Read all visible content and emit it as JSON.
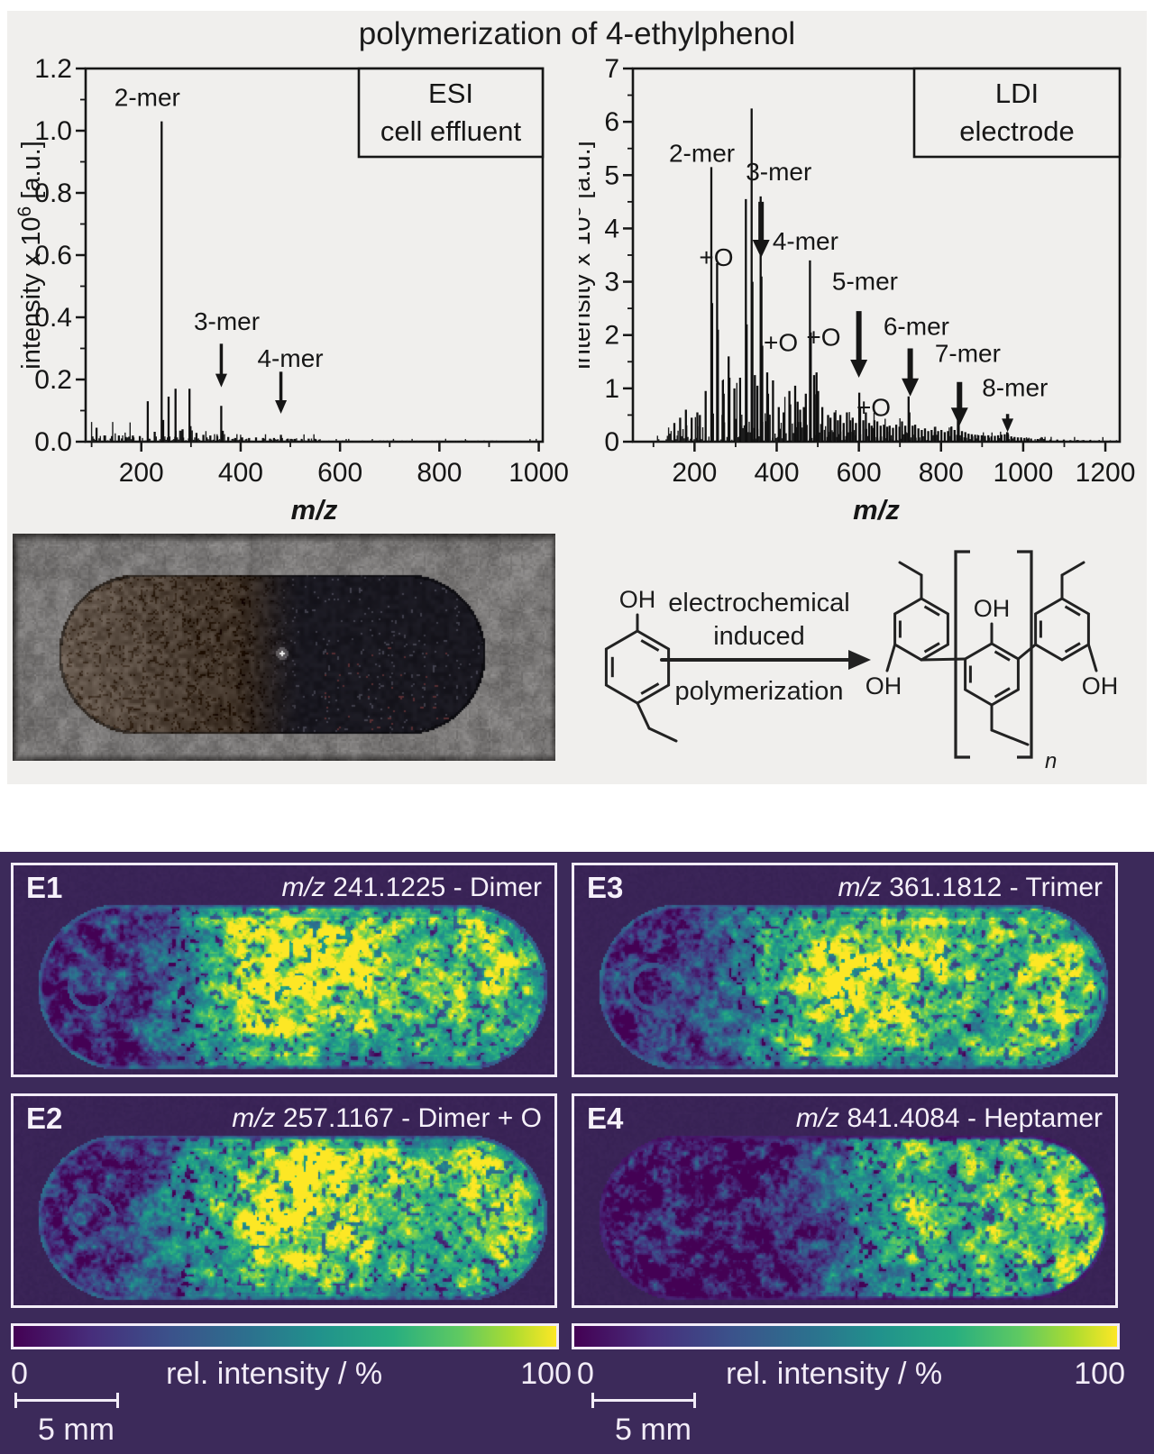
{
  "title": "polymerization of 4-ethylphenol",
  "scheme": {
    "reactant_oh": "OH",
    "arrow_line1": "electrochemical",
    "arrow_line2": "induced",
    "arrow_line3": "polymerization",
    "product_oh_left": "OH",
    "product_oh_center": "OH",
    "product_oh_right": "OH",
    "repeat_subscript": "n"
  },
  "imaging": {
    "panels": [
      {
        "id": "E1",
        "mz_label": "m/z",
        "caption": "241.1225 - Dimer",
        "pattern": "full"
      },
      {
        "id": "E2",
        "mz_label": "m/z",
        "caption": "257.1167 - Dimer + O",
        "pattern": "full"
      },
      {
        "id": "E3",
        "mz_label": "m/z",
        "caption": "361.1812 - Trimer",
        "pattern": "full"
      },
      {
        "id": "E4",
        "mz_label": "m/z",
        "caption": "841.4084 - Heptamer",
        "pattern": "right"
      }
    ],
    "colorbar": {
      "min_label": "0",
      "max_label": "100",
      "title": "rel. intensity / %"
    },
    "scalebar_label": "5 mm",
    "colors": {
      "background": "#3c2a5a",
      "panel_bg": "#3a2457",
      "frame": "#f2ecf7",
      "viridis_min": "#440154",
      "viridis_max": "#fde725"
    }
  },
  "chart_data": [
    {
      "type": "line",
      "subtype": "mass-spectrum",
      "title": "ESI cell effluent",
      "legend": [
        "ESI",
        "cell effluent"
      ],
      "legend_position": "top-right",
      "xlabel": "m/z",
      "ylabel_main": "intensity x 10",
      "ylabel_exp": "6",
      "ylabel_unit": " [a.u.]",
      "x_range": [
        88,
        1008
      ],
      "x_ticks": [
        200,
        400,
        600,
        800,
        1000
      ],
      "x_minor_step": 100,
      "y_range": [
        0,
        1.2
      ],
      "y_ticks": [
        0.0,
        0.2,
        0.4,
        0.6,
        0.8,
        1.0,
        1.2
      ],
      "y_tick_labels": [
        "0.0",
        "0.2",
        "0.4",
        "0.6",
        "0.8",
        "1.0",
        "1.2"
      ],
      "y_minor_step": 0.1,
      "grid": false,
      "peaks": [
        [
          110,
          0.045
        ],
        [
          127,
          0.02
        ],
        [
          141,
          0.018
        ],
        [
          155,
          0.02
        ],
        [
          169,
          0.015
        ],
        [
          183,
          0.02
        ],
        [
          197,
          0.018
        ],
        [
          213,
          0.13
        ],
        [
          227,
          0.032
        ],
        [
          241,
          1.03
        ],
        [
          244,
          0.07
        ],
        [
          255,
          0.145
        ],
        [
          269,
          0.17
        ],
        [
          283,
          0.04
        ],
        [
          297,
          0.17
        ],
        [
          299,
          0.05
        ],
        [
          311,
          0.028
        ],
        [
          325,
          0.022
        ],
        [
          339,
          0.02
        ],
        [
          353,
          0.018
        ],
        [
          361,
          0.115
        ],
        [
          364,
          0.035
        ],
        [
          375,
          0.015
        ],
        [
          389,
          0.012
        ],
        [
          403,
          0.014
        ],
        [
          417,
          0.012
        ],
        [
          431,
          0.014
        ],
        [
          445,
          0.012
        ],
        [
          459,
          0.01
        ],
        [
          467,
          0.012
        ],
        [
          481,
          0.022
        ],
        [
          483,
          0.012
        ],
        [
          495,
          0.01
        ],
        [
          509,
          0.009
        ],
        [
          523,
          0.008
        ],
        [
          537,
          0.01
        ],
        [
          551,
          0.008
        ]
      ],
      "annotations": [
        {
          "label": "2-mer",
          "label_x": 212,
          "label_y": 1.08
        },
        {
          "label": "3-mer",
          "label_x": 372,
          "label_y": 0.36,
          "arrow": {
            "x": 361,
            "y1": 0.315,
            "y2": 0.175
          },
          "thick": false
        },
        {
          "label": "4-mer",
          "label_x": 500,
          "label_y": 0.24,
          "arrow": {
            "x": 481,
            "y1": 0.225,
            "y2": 0.09
          },
          "thick": false
        }
      ]
    },
    {
      "type": "line",
      "subtype": "mass-spectrum",
      "title": "LDI electrode",
      "legend": [
        "LDI",
        "electrode"
      ],
      "legend_position": "top-right",
      "xlabel": "m/z",
      "ylabel_main": "intensity x 10",
      "ylabel_exp": "3",
      "ylabel_unit": " [a.u.]",
      "x_range": [
        50,
        1235
      ],
      "x_ticks": [
        200,
        400,
        600,
        800,
        1000,
        1200
      ],
      "x_minor_step": 100,
      "y_range": [
        0,
        7
      ],
      "y_ticks": [
        0,
        1,
        2,
        3,
        4,
        5,
        6,
        7
      ],
      "y_tick_labels": [
        "0",
        "1",
        "2",
        "3",
        "4",
        "5",
        "6",
        "7"
      ],
      "y_minor_step": 0.5,
      "grid": false,
      "peaks": [
        [
          151,
          0.35
        ],
        [
          165,
          0.45
        ],
        [
          179,
          0.6
        ],
        [
          193,
          0.45
        ],
        [
          207,
          0.55
        ],
        [
          213,
          0.5
        ],
        [
          227,
          0.95
        ],
        [
          241,
          5.15
        ],
        [
          243,
          2.6
        ],
        [
          255,
          3.35
        ],
        [
          257,
          2.1
        ],
        [
          269,
          1.15
        ],
        [
          271,
          0.9
        ],
        [
          283,
          1.6
        ],
        [
          285,
          1.2
        ],
        [
          297,
          1.0
        ],
        [
          311,
          1.2
        ],
        [
          325,
          4.55
        ],
        [
          327,
          2.2
        ],
        [
          339,
          6.25
        ],
        [
          341,
          3.0
        ],
        [
          347,
          1.25
        ],
        [
          353,
          1.05
        ],
        [
          361,
          4.6
        ],
        [
          363,
          3.1
        ],
        [
          365,
          1.8
        ],
        [
          377,
          1.3
        ],
        [
          379,
          0.9
        ],
        [
          391,
          1.15
        ],
        [
          405,
          0.65
        ],
        [
          417,
          0.55
        ],
        [
          431,
          0.95
        ],
        [
          433,
          0.7
        ],
        [
          445,
          1.05
        ],
        [
          451,
          0.75
        ],
        [
          457,
          0.6
        ],
        [
          466,
          0.65
        ],
        [
          471,
          0.9
        ],
        [
          481,
          3.4
        ],
        [
          483,
          2.05
        ],
        [
          491,
          1.25
        ],
        [
          497,
          1.3
        ],
        [
          501,
          0.95
        ],
        [
          511,
          0.65
        ],
        [
          525,
          0.5
        ],
        [
          531,
          0.45
        ],
        [
          541,
          0.55
        ],
        [
          549,
          0.4
        ],
        [
          555,
          0.5
        ],
        [
          563,
          0.35
        ],
        [
          571,
          0.55
        ],
        [
          579,
          0.4
        ],
        [
          585,
          0.45
        ],
        [
          593,
          0.35
        ],
        [
          601,
          0.92
        ],
        [
          603,
          0.65
        ],
        [
          611,
          0.4
        ],
        [
          617,
          0.55
        ],
        [
          625,
          0.35
        ],
        [
          631,
          0.3
        ],
        [
          638,
          0.4
        ],
        [
          645,
          0.38
        ],
        [
          653,
          0.3
        ],
        [
          661,
          0.32
        ],
        [
          669,
          0.28
        ],
        [
          675,
          0.3
        ],
        [
          683,
          0.26
        ],
        [
          691,
          0.32
        ],
        [
          699,
          0.28
        ],
        [
          705,
          0.38
        ],
        [
          713,
          0.3
        ],
        [
          721,
          0.85
        ],
        [
          723,
          0.55
        ],
        [
          731,
          0.3
        ],
        [
          737,
          0.32
        ],
        [
          745,
          0.25
        ],
        [
          753,
          0.22
        ],
        [
          761,
          0.25
        ],
        [
          769,
          0.2
        ],
        [
          777,
          0.22
        ],
        [
          785,
          0.18
        ],
        [
          793,
          0.2
        ],
        [
          801,
          0.22
        ],
        [
          809,
          0.18
        ],
        [
          817,
          0.2
        ],
        [
          825,
          0.28
        ],
        [
          833,
          0.22
        ],
        [
          841,
          0.45
        ],
        [
          843,
          0.32
        ],
        [
          851,
          0.2
        ],
        [
          859,
          0.18
        ],
        [
          867,
          0.15
        ],
        [
          875,
          0.14
        ],
        [
          883,
          0.13
        ],
        [
          891,
          0.12
        ],
        [
          899,
          0.12
        ],
        [
          907,
          0.11
        ],
        [
          915,
          0.12
        ],
        [
          923,
          0.1
        ],
        [
          931,
          0.11
        ],
        [
          939,
          0.12
        ],
        [
          947,
          0.13
        ],
        [
          955,
          0.14
        ],
        [
          961,
          0.18
        ],
        [
          963,
          0.14
        ],
        [
          971,
          0.1
        ],
        [
          979,
          0.09
        ],
        [
          987,
          0.08
        ],
        [
          995,
          0.08
        ],
        [
          1003,
          0.07
        ],
        [
          1011,
          0.06
        ],
        [
          1019,
          0.06
        ],
        [
          1035,
          0.05
        ],
        [
          1051,
          0.05
        ],
        [
          1067,
          0.04
        ],
        [
          1083,
          0.04
        ],
        [
          1099,
          0.04
        ],
        [
          1115,
          0.03
        ],
        [
          1131,
          0.03
        ],
        [
          1147,
          0.03
        ],
        [
          1163,
          0.03
        ]
      ],
      "annotations": [
        {
          "label": "2-mer",
          "label_x": 218,
          "label_y": 5.25
        },
        {
          "label": "+O",
          "label_x": 253,
          "label_y": 3.3
        },
        {
          "label": "3-mer",
          "label_x": 405,
          "label_y": 4.9,
          "arrow": {
            "x": 362,
            "y1": 4.5,
            "y2": 3.45
          },
          "thick": true
        },
        {
          "label": "4-mer",
          "label_x": 470,
          "label_y": 3.6
        },
        {
          "label": "+O",
          "label_x": 410,
          "label_y": 1.7
        },
        {
          "label": "+O",
          "label_x": 514,
          "label_y": 1.8
        },
        {
          "label": "5-mer",
          "label_x": 615,
          "label_y": 2.85,
          "arrow": {
            "x": 600,
            "y1": 2.45,
            "y2": 1.2
          },
          "thick": true
        },
        {
          "label": "+O",
          "label_x": 636,
          "label_y": 0.48
        },
        {
          "label": "6-mer",
          "label_x": 740,
          "label_y": 2.0,
          "arrow": {
            "x": 725,
            "y1": 1.75,
            "y2": 0.85
          },
          "thick": true
        },
        {
          "label": "7-mer",
          "label_x": 865,
          "label_y": 1.5,
          "arrow": {
            "x": 845,
            "y1": 1.12,
            "y2": 0.3
          },
          "thick": true
        },
        {
          "label": "8-mer",
          "label_x": 980,
          "label_y": 0.85,
          "arrow": {
            "x": 962,
            "y1": 0.52,
            "y2": 0.18
          },
          "thick": false
        }
      ]
    }
  ]
}
